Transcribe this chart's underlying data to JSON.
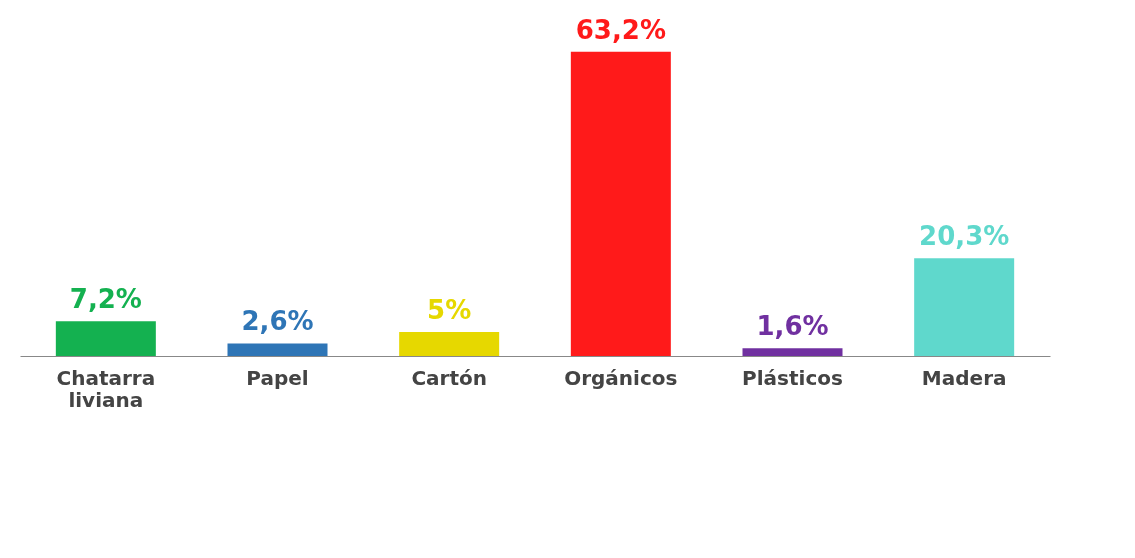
{
  "chart_data": {
    "type": "bar",
    "categories": [
      "Chatarra liviana",
      "Papel",
      "Cartón",
      "Orgánicos",
      "Plásticos",
      "Madera"
    ],
    "values": [
      7.2,
      2.6,
      5,
      63.2,
      1.6,
      20.3
    ],
    "colors": [
      "#14b150",
      "#2e75b6",
      "#e6d800",
      "#ff1a1a",
      "#7030a0",
      "#5fd8cc"
    ],
    "value_labels": [
      "7,2%",
      "2,6%",
      "5%",
      "63,2%",
      "1,6%",
      "20,3%"
    ],
    "grid": false
  }
}
